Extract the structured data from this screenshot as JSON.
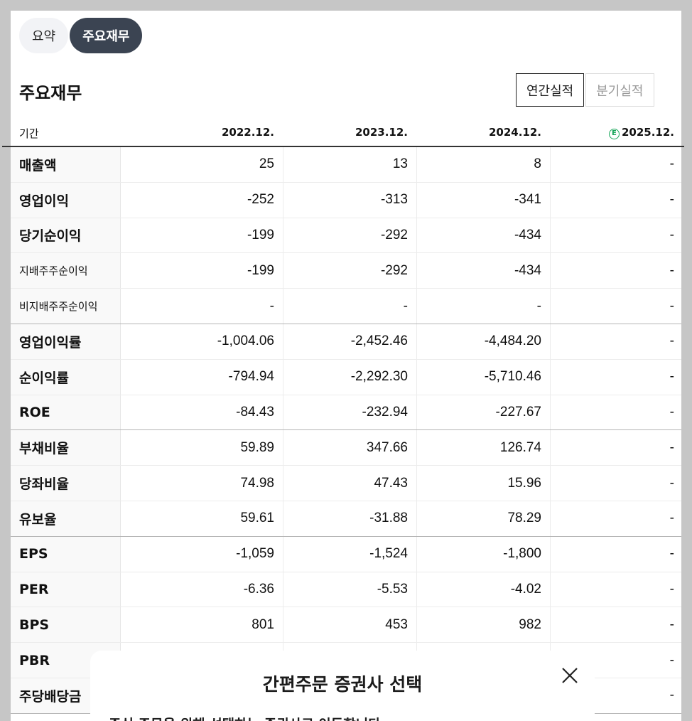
{
  "tabs": [
    {
      "label": "요약",
      "active": false
    },
    {
      "label": "주요재무",
      "active": true
    }
  ],
  "section_title": "주요재무",
  "period_toggle": [
    {
      "label": "연간실적",
      "active": true
    },
    {
      "label": "분기실적",
      "active": false
    }
  ],
  "table": {
    "period_label": "기간",
    "years": [
      "2022.12.",
      "2023.12.",
      "2024.12.",
      "2025.12."
    ],
    "estimate_badge": "E",
    "rows": [
      {
        "label": "매출액",
        "values": [
          "25",
          "13",
          "8",
          "-"
        ]
      },
      {
        "label": "영업이익",
        "values": [
          "-252",
          "-313",
          "-341",
          "-"
        ]
      },
      {
        "label": "당기순이익",
        "values": [
          "-199",
          "-292",
          "-434",
          "-"
        ]
      },
      {
        "label": "지배주주순이익",
        "values": [
          "-199",
          "-292",
          "-434",
          "-"
        ]
      },
      {
        "label": "비지배주주순이익",
        "values": [
          "-",
          "-",
          "-",
          "-"
        ]
      },
      {
        "label": "영업이익률",
        "values": [
          "-1,004.06",
          "-2,452.46",
          "-4,484.20",
          "-"
        ]
      },
      {
        "label": "순이익률",
        "values": [
          "-794.94",
          "-2,292.30",
          "-5,710.46",
          "-"
        ]
      },
      {
        "label": "ROE",
        "values": [
          "-84.43",
          "-232.94",
          "-227.67",
          "-"
        ]
      },
      {
        "label": "부채비율",
        "values": [
          "59.89",
          "347.66",
          "126.74",
          "-"
        ]
      },
      {
        "label": "당좌비율",
        "values": [
          "74.98",
          "47.43",
          "15.96",
          "-"
        ]
      },
      {
        "label": "유보율",
        "values": [
          "59.61",
          "-31.88",
          "78.29",
          "-"
        ]
      },
      {
        "label": "EPS",
        "values": [
          "-1,059",
          "-1,524",
          "-1,800",
          "-"
        ]
      },
      {
        "label": "PER",
        "values": [
          "-6.36",
          "-5.53",
          "-4.02",
          "-"
        ]
      },
      {
        "label": "BPS",
        "values": [
          "801",
          "453",
          "982",
          "-"
        ]
      },
      {
        "label": "PBR",
        "values": [
          "",
          "",
          "",
          "-"
        ]
      },
      {
        "label": "주당배당금",
        "values": [
          "",
          "",
          "",
          "-"
        ]
      }
    ]
  },
  "colors": {
    "negative": "#1f7fd6",
    "estimate_badge": "#18a65a",
    "active_tab_bg": "#3b4452"
  },
  "sheet": {
    "title": "간편주문 증권사 선택",
    "subtitle": "주식 주문을 위해 선택하는 증권사로 이동합니다.",
    "close_icon": "close-icon"
  }
}
